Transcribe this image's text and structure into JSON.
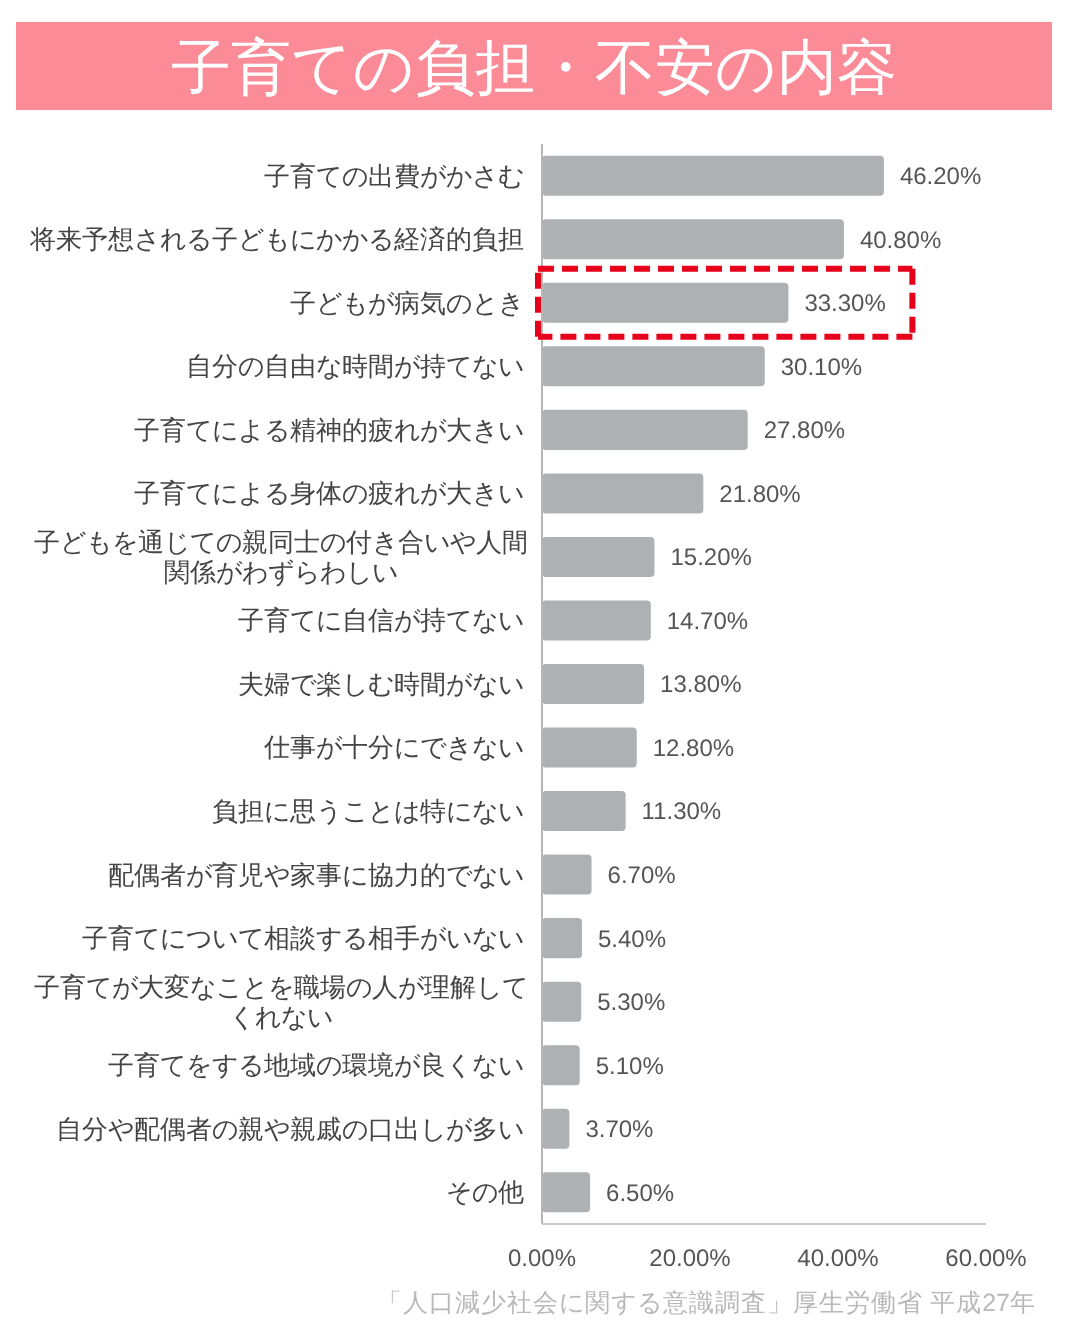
{
  "chart_data": {
    "type": "bar",
    "orientation": "horizontal",
    "title": "子育ての負担・不安の内容",
    "categories": [
      "子育ての出費がかさむ",
      "将来予想される子どもにかかる経済的負担",
      "子どもが病気のとき",
      "自分の自由な時間が持てない",
      "子育てによる精神的疲れが大きい",
      "子育てによる身体の疲れが大きい",
      "子どもを通じての親同士の付き合いや人間関係がわずらわしい",
      "子育てに自信が持てない",
      "夫婦で楽しむ時間がない",
      "仕事が十分にできない",
      "負担に思うことは特にない",
      "配偶者が育児や家事に協力的でない",
      "子育てについて相談する相手がいない",
      "子育てが大変なことを職場の人が理解してくれない",
      "子育てをする地域の環境が良くない",
      "自分や配偶者の親や親戚の口出しが多い",
      "その他"
    ],
    "values": [
      46.2,
      40.8,
      33.3,
      30.1,
      27.8,
      21.8,
      15.2,
      14.7,
      13.8,
      12.8,
      11.3,
      6.7,
      5.4,
      5.3,
      5.1,
      3.7,
      6.5
    ],
    "value_labels": [
      "46.20%",
      "40.80%",
      "33.30%",
      "30.10%",
      "27.80%",
      "21.80%",
      "15.20%",
      "14.70%",
      "13.80%",
      "12.80%",
      "11.30%",
      "6.70%",
      "5.40%",
      "5.30%",
      "5.10%",
      "3.70%",
      "6.50%"
    ],
    "color": "#adb1b3",
    "xlim": [
      0,
      60
    ],
    "xticks": [
      {
        "value": 0,
        "label": "0.00%"
      },
      {
        "value": 20,
        "label": "20.00%"
      },
      {
        "value": 40,
        "label": "40.00%"
      },
      {
        "value": 60,
        "label": "60.00%"
      }
    ],
    "annotations": [
      "「人口減少社会に関する意識調査」厚生労働省 平成27年"
    ]
  }
}
